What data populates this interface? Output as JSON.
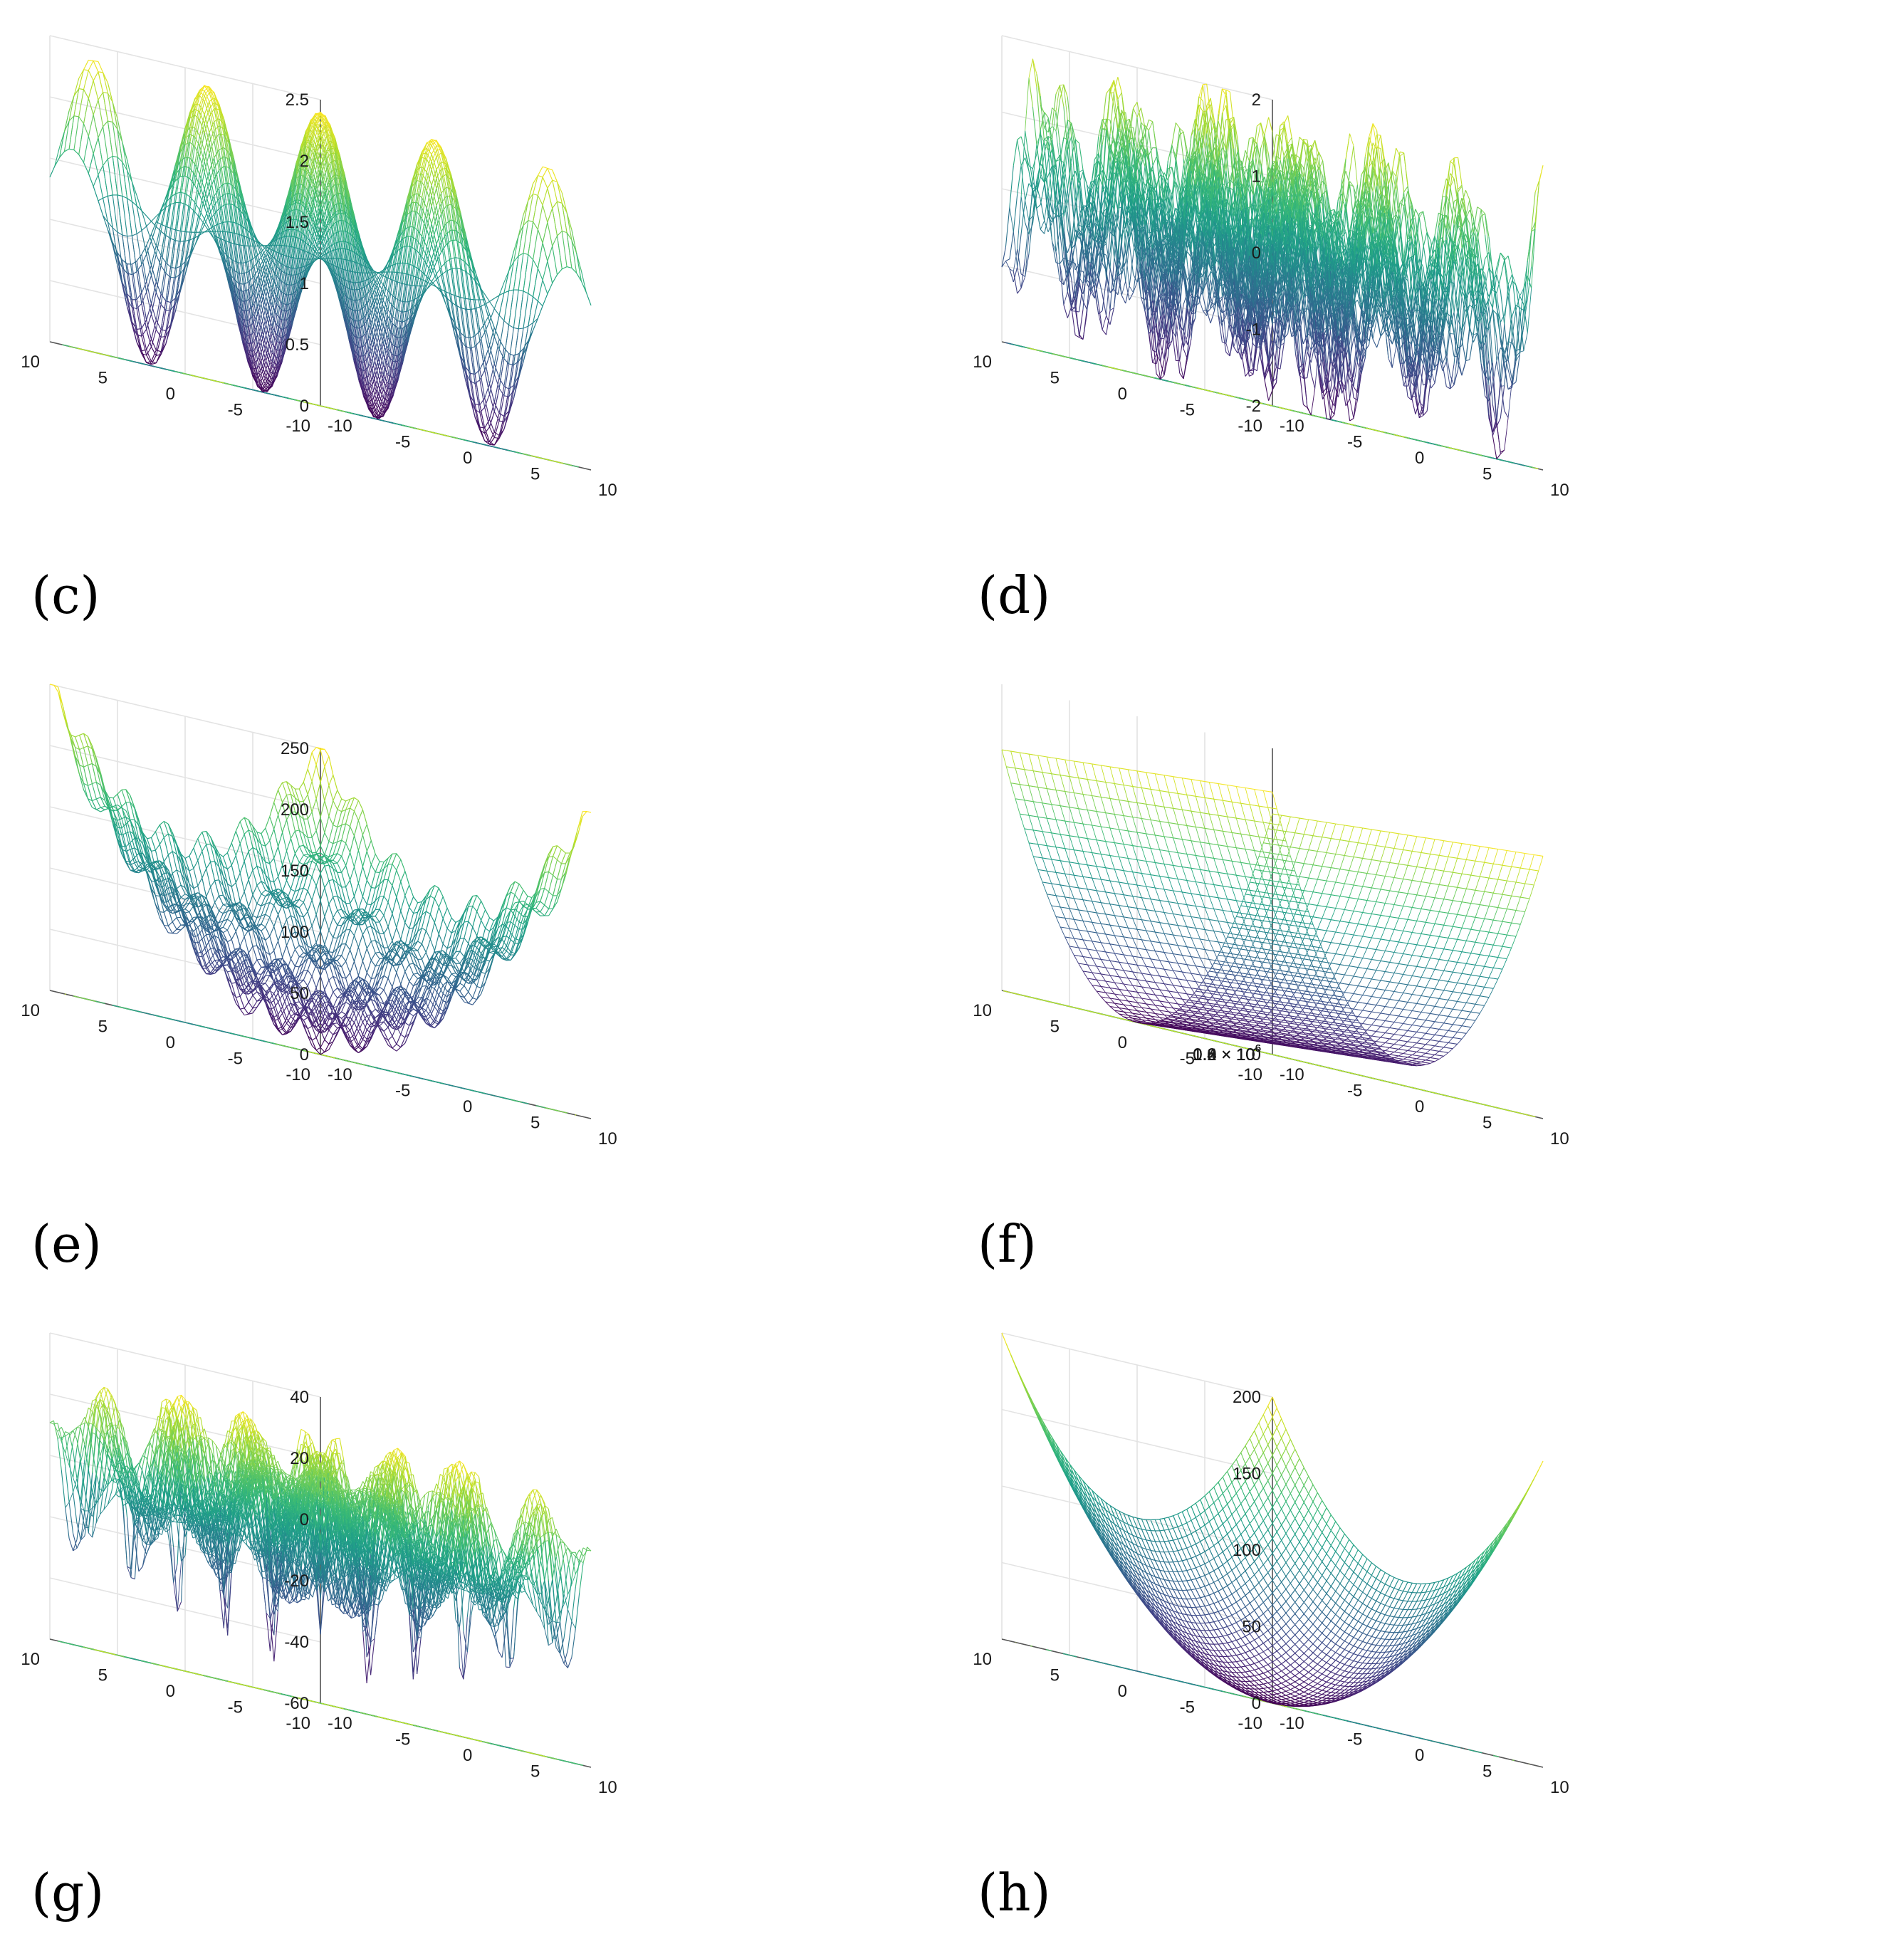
{
  "panels": [
    {
      "label": "(c)"
    },
    {
      "label": "(d)"
    },
    {
      "label": "(e)"
    },
    {
      "label": "(f)"
    },
    {
      "label": "(g)"
    },
    {
      "label": "(h)"
    }
  ],
  "chart_data": [
    {
      "type": "surface",
      "panel": "(c)",
      "title": "",
      "xlabel": "",
      "ylabel": "",
      "zlabel": "",
      "xlim": [
        -10,
        10
      ],
      "ylim": [
        -10,
        10
      ],
      "zlim": [
        0,
        2.5
      ],
      "x_ticks": [
        "-10",
        "-5",
        "0",
        "5",
        "10"
      ],
      "y_ticks": [
        "-10",
        "-5",
        "0",
        "5",
        "10"
      ],
      "z_ticks": [
        "0",
        "0.5",
        "1",
        "1.5",
        "2",
        "2.5"
      ],
      "z_max_approx": 2.4,
      "surface_shape": "periodic hills and wells (product of cosines); wells reach 0, peaks ~2.4",
      "contour_on_floor": true,
      "grid": true,
      "colormap": "viridis"
    },
    {
      "type": "surface",
      "panel": "(d)",
      "title": "",
      "xlabel": "",
      "ylabel": "",
      "zlabel": "",
      "xlim": [
        -10,
        10
      ],
      "ylim": [
        -10,
        10
      ],
      "zlim": [
        -2,
        2
      ],
      "x_ticks": [
        "-10",
        "-5",
        "0",
        "5",
        "10"
      ],
      "y_ticks": [
        "-10",
        "-5",
        "0",
        "5",
        "10"
      ],
      "z_ticks": [
        "-2",
        "-1",
        "0",
        "1",
        "2"
      ],
      "surface_shape": "highly oscillatory multimodal surface spanning roughly -2 to 2",
      "contour_on_floor": true,
      "grid": true,
      "colormap": "viridis"
    },
    {
      "type": "surface",
      "panel": "(e)",
      "title": "",
      "xlabel": "",
      "ylabel": "",
      "zlabel": "",
      "xlim": [
        -10,
        10
      ],
      "ylim": [
        -10,
        10
      ],
      "zlim": [
        0,
        250
      ],
      "x_ticks": [
        "-10",
        "-5",
        "0",
        "5",
        "10"
      ],
      "y_ticks": [
        "-10",
        "-5",
        "0",
        "5",
        "10"
      ],
      "z_ticks": [
        "0",
        "50",
        "100",
        "150",
        "200",
        "250"
      ],
      "z_max_approx": 240,
      "surface_shape": "quadratic bowl with dense cosine ripples (Rastrigin-like)",
      "contour_on_floor": true,
      "grid": true,
      "colormap": "viridis"
    },
    {
      "type": "surface",
      "panel": "(f)",
      "title": "",
      "xlabel": "",
      "ylabel": "",
      "zlabel": "",
      "xlim": [
        -10,
        10
      ],
      "ylim": [
        -10,
        10
      ],
      "zlim": [
        0,
        1400000
      ],
      "x_ticks": [
        "-10",
        "-5",
        "0",
        "5",
        "10"
      ],
      "y_ticks": [
        "-10",
        "-5",
        "0",
        "5",
        "10"
      ],
      "z_ticks": [
        "0",
        "0.2 × 10",
        "0.4 × 10",
        "0.6 × 10",
        "0.8 × 10",
        "1.0 × 10",
        "1.2 × 10",
        "1.4 × 10"
      ],
      "z_tick_exponent": "6",
      "z_max_approx": 1100000,
      "surface_shape": "steep valley (Rosenbrock-like), parabolic in one axis, nearly flat along the other",
      "contour_on_floor": true,
      "grid": true,
      "colormap": "viridis"
    },
    {
      "type": "surface",
      "panel": "(g)",
      "title": "",
      "xlabel": "",
      "ylabel": "",
      "zlabel": "",
      "xlim": [
        -10,
        10
      ],
      "ylim": [
        -10,
        10
      ],
      "zlim": [
        -60,
        40
      ],
      "x_ticks": [
        "-10",
        "-5",
        "0",
        "5",
        "10"
      ],
      "y_ticks": [
        "-10",
        "-5",
        "0",
        "5",
        "10"
      ],
      "z_ticks": [
        "-60",
        "-40",
        "-20",
        "0",
        "20",
        "40"
      ],
      "surface_shape": "rugged multimodal surface with deep narrow wells to about -60",
      "contour_on_floor": true,
      "grid": true,
      "colormap": "viridis"
    },
    {
      "type": "surface",
      "panel": "(h)",
      "title": "",
      "xlabel": "",
      "ylabel": "",
      "zlabel": "",
      "xlim": [
        -10,
        10
      ],
      "ylim": [
        -10,
        10
      ],
      "zlim": [
        0,
        200
      ],
      "x_ticks": [
        "-10",
        "-5",
        "0",
        "5",
        "10"
      ],
      "y_ticks": [
        "-10",
        "-5",
        "0",
        "5",
        "10"
      ],
      "z_ticks": [
        "0",
        "50",
        "100",
        "150",
        "200"
      ],
      "z_max_approx": 200,
      "surface_shape": "smooth quadratic bowl (sphere function x^2 + y^2)",
      "contour_on_floor": true,
      "grid": true,
      "colormap": "viridis"
    }
  ]
}
